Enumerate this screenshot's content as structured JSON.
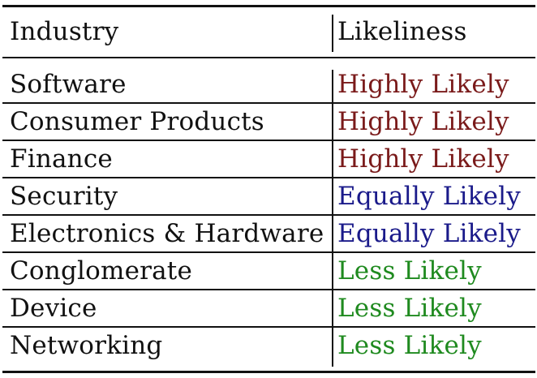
{
  "header": {
    "industry_label": "Industry",
    "likeliness_label": "Likeliness"
  },
  "colors": {
    "highly_likely": "#7a1a1a",
    "equally_likely": "#1a1a8a",
    "less_likely": "#1f8a1f"
  },
  "rows": [
    {
      "industry": "Software",
      "likeliness": "Highly Likely",
      "level": "highly_likely"
    },
    {
      "industry": "Consumer Products",
      "likeliness": "Highly Likely",
      "level": "highly_likely"
    },
    {
      "industry": "Finance",
      "likeliness": "Highly Likely",
      "level": "highly_likely"
    },
    {
      "industry": "Security",
      "likeliness": "Equally Likely",
      "level": "equally_likely"
    },
    {
      "industry": "Electronics & Hardware",
      "likeliness": "Equally Likely",
      "level": "equally_likely"
    },
    {
      "industry": "Conglomerate",
      "likeliness": "Less Likely",
      "level": "less_likely"
    },
    {
      "industry": "Device",
      "likeliness": "Less Likely",
      "level": "less_likely"
    },
    {
      "industry": "Networking",
      "likeliness": "Less Likely",
      "level": "less_likely"
    }
  ]
}
